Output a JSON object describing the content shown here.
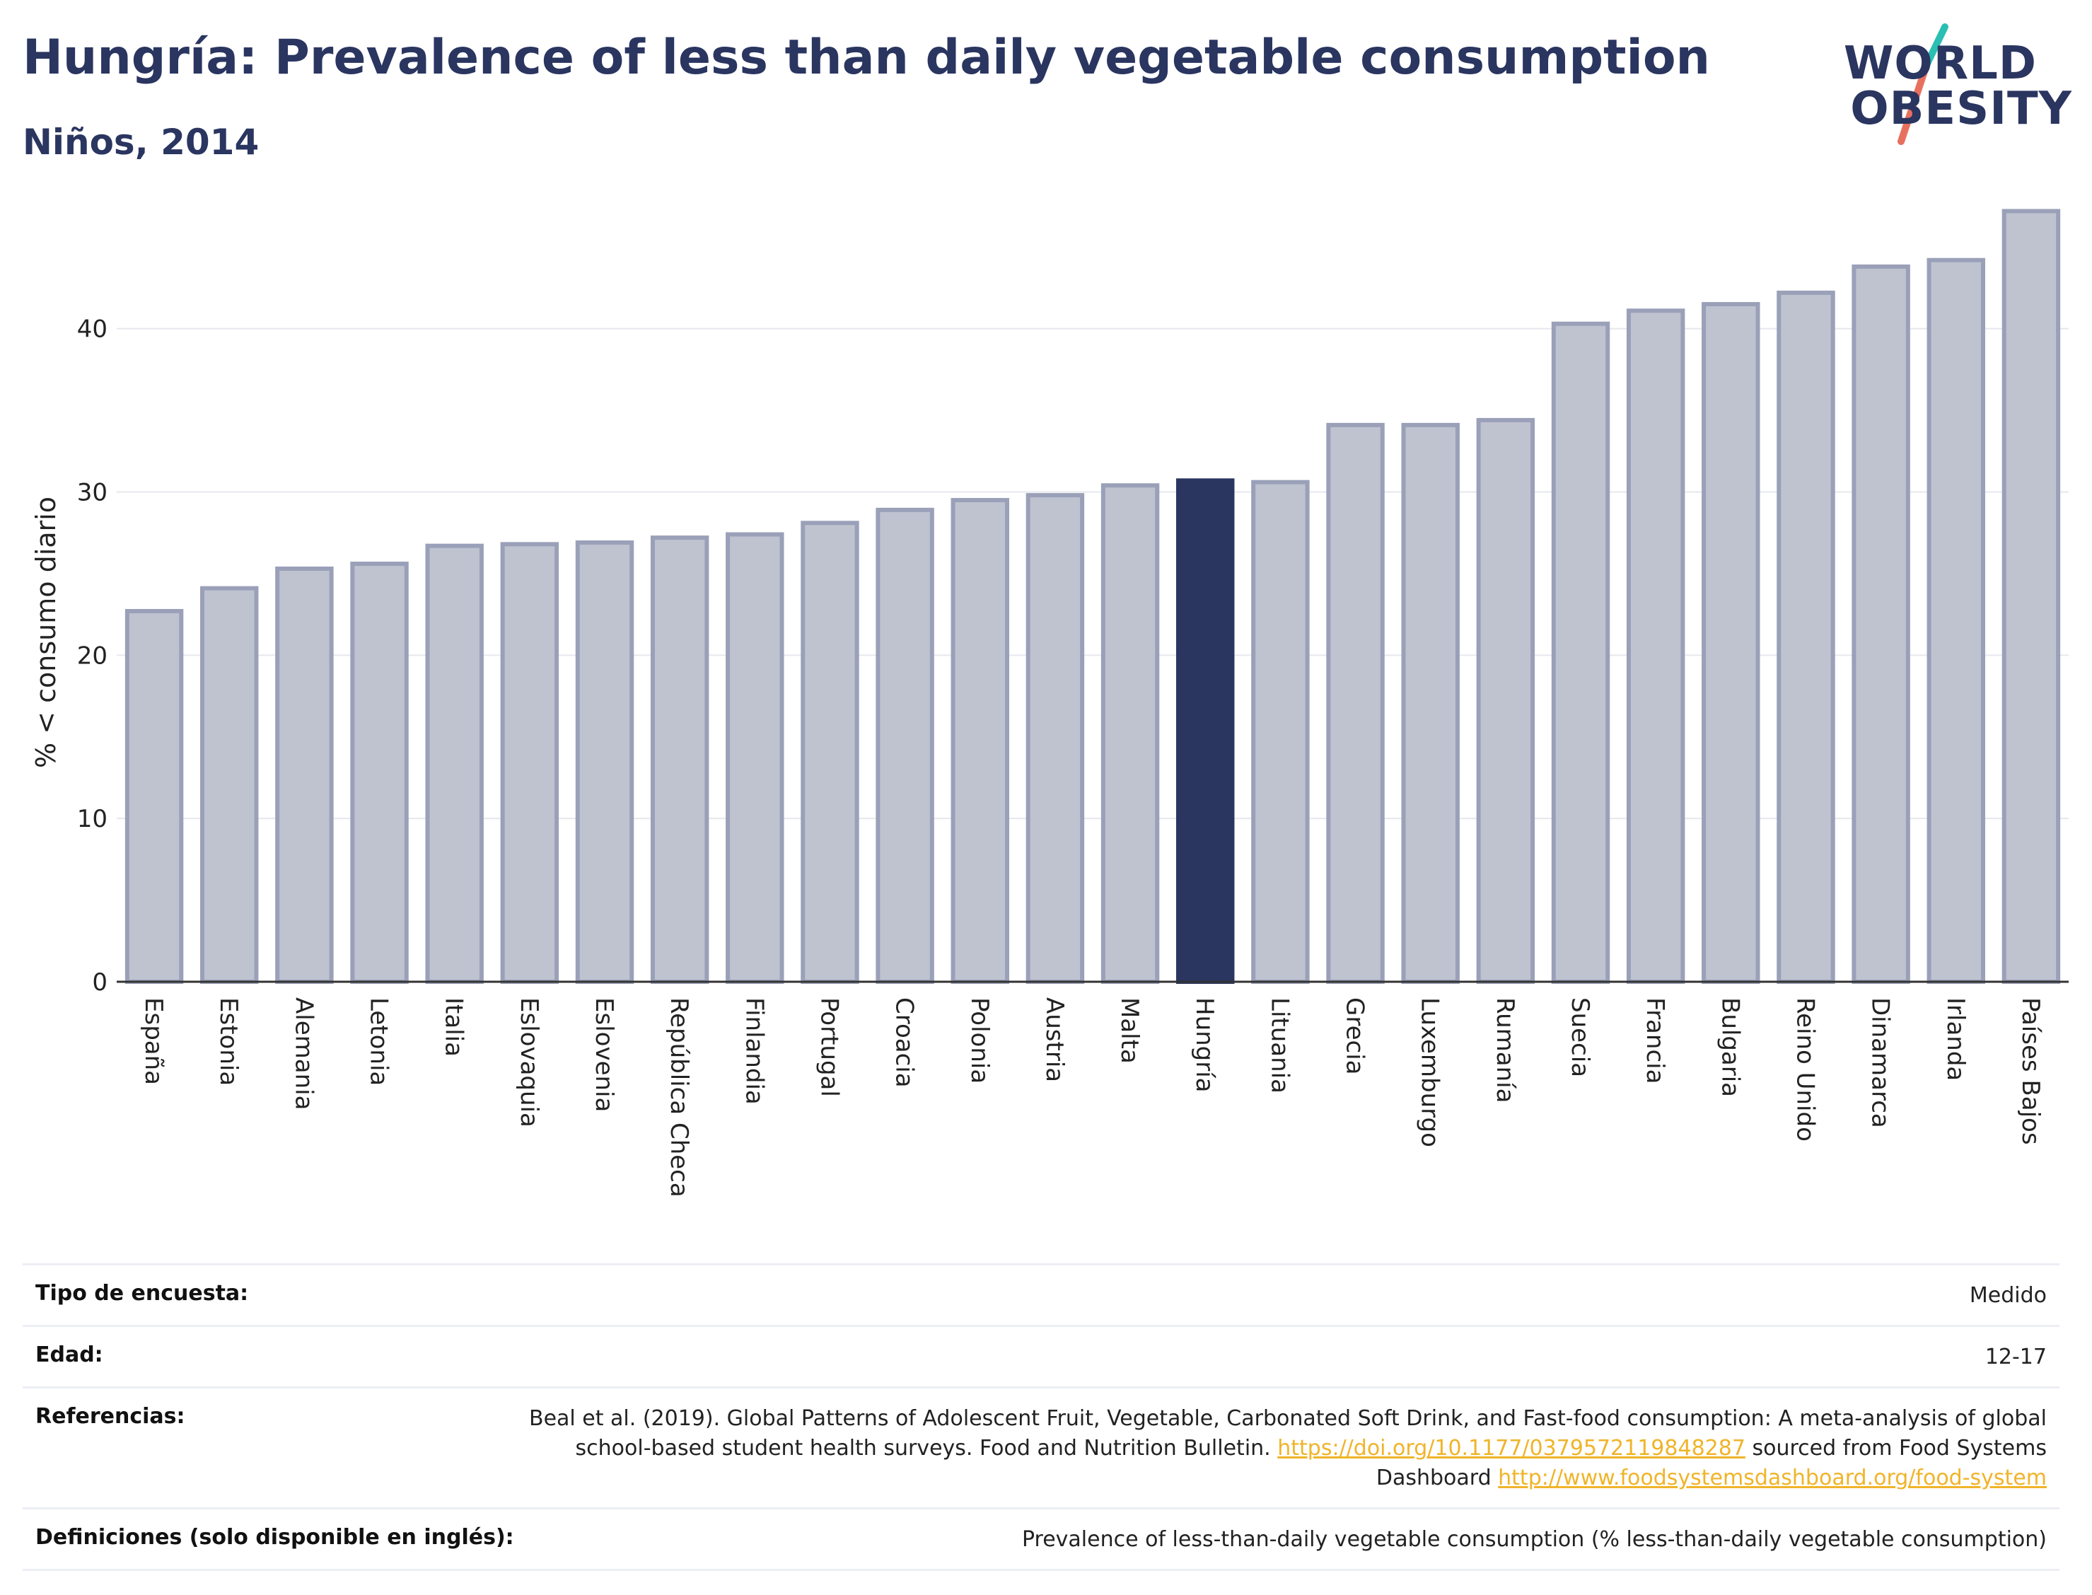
{
  "header": {
    "title": "Hungría: Prevalence of less than daily vegetable consumption",
    "subtitle": "Niños, 2014",
    "logo_line1": "WORLD",
    "logo_line2": "OBESITY"
  },
  "colors": {
    "primary": "#2a3560",
    "bar_default": "#bfc3d0",
    "bar_outline": "#9aa0b8",
    "bar_highlight": "#2a3560",
    "link": "#f0b429",
    "logo_teal": "#2bbfb3",
    "logo_coral": "#e8705f"
  },
  "chart_data": {
    "type": "bar",
    "title": "Hungría: Prevalence of less than daily vegetable consumption",
    "subtitle": "Niños, 2014",
    "ylabel": "% < consumo diario",
    "xlabel": "",
    "ylim": [
      0,
      48
    ],
    "yticks": [
      0,
      10,
      20,
      30,
      40
    ],
    "grid": true,
    "highlight": "Hungría",
    "categories": [
      "España",
      "Estonia",
      "Alemania",
      "Letonia",
      "Italia",
      "Eslovaquia",
      "Eslovenia",
      "República Checa",
      "Finlandia",
      "Portugal",
      "Croacia",
      "Polonia",
      "Austria",
      "Malta",
      "Hungría",
      "Lituania",
      "Grecia",
      "Luxemburgo",
      "Rumanía",
      "Suecia",
      "Francia",
      "Bulgaria",
      "Reino Unido",
      "Dinamarca",
      "Irlanda",
      "Países Bajos"
    ],
    "values": [
      22.7,
      24.1,
      25.3,
      25.6,
      26.7,
      26.8,
      26.9,
      27.2,
      27.4,
      28.1,
      28.9,
      29.5,
      29.8,
      30.4,
      30.7,
      30.6,
      34.1,
      34.1,
      34.4,
      40.3,
      41.1,
      41.5,
      42.2,
      43.8,
      44.2,
      47.2
    ]
  },
  "info": {
    "survey_type_label": "Tipo de encuesta:",
    "survey_type_value": "Medido",
    "age_label": "Edad:",
    "age_value": "12-17",
    "references_label": "Referencias:",
    "references_text_1": "Beal et al. (2019). Global Patterns of Adolescent Fruit, Vegetable, Carbonated Soft Drink, and Fast-food consumption: A meta-analysis of global school-based student health surveys. Food and Nutrition Bulletin. ",
    "references_link_1": "https://doi.org/10.1177/0379572119848287",
    "references_text_2": " sourced from Food Systems Dashboard ",
    "references_link_2": "http://www.foodsystemsdashboard.org/food-system",
    "definitions_label": "Definiciones (solo disponible en inglés):",
    "definitions_value": "Prevalence of less-than-daily vegetable consumption (% less-than-daily vegetable consumption)"
  }
}
